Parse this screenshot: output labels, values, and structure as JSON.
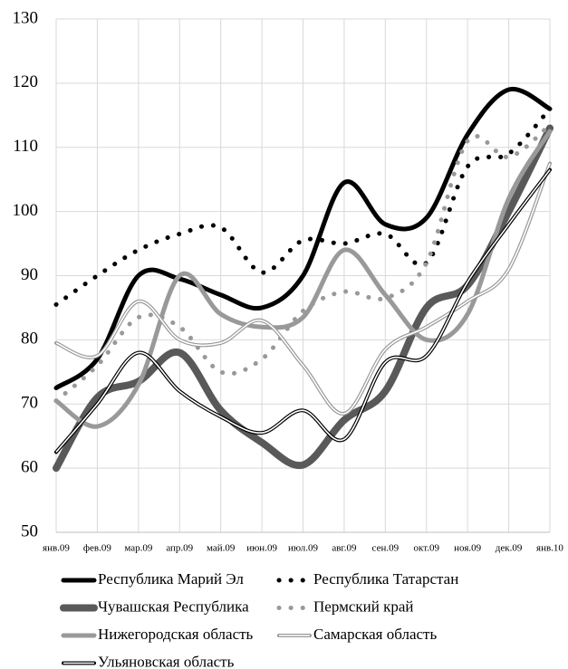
{
  "chart_data": {
    "type": "line",
    "categories": [
      "янв.09",
      "фев.09",
      "мар.09",
      "апр.09",
      "май.09",
      "июн.09",
      "июл.09",
      "авг.09",
      "сен.09",
      "окт.09",
      "ноя.09",
      "дек.09",
      "янв.10"
    ],
    "ylim": [
      50,
      130
    ],
    "yticks": [
      50,
      60,
      70,
      80,
      90,
      100,
      110,
      120,
      130
    ],
    "grid": true,
    "smooth": true,
    "series": [
      {
        "name": "Республика Марий Эл",
        "color": "#000000",
        "line_style": "solid",
        "values": [
          72.5,
          77,
          90,
          89.5,
          87,
          85,
          90,
          104.5,
          98,
          99,
          112,
          119,
          116
        ]
      },
      {
        "name": "Республика Татарстан",
        "color": "#000000",
        "line_style": "dotted",
        "values": [
          85.5,
          90,
          94,
          96.5,
          97.5,
          90.5,
          95.5,
          95,
          96.5,
          92,
          107,
          109,
          116
        ]
      },
      {
        "name": "Чувашская Республика",
        "color": "#595959",
        "line_style": "solid",
        "values": [
          60,
          71,
          73.5,
          78,
          69,
          64,
          60.5,
          67.5,
          72,
          85,
          88.5,
          100,
          113
        ]
      },
      {
        "name": "Пермский край",
        "color": "#999999",
        "line_style": "dotted",
        "values": [
          70.5,
          76,
          83.5,
          82,
          75,
          77,
          84.5,
          87.5,
          86.5,
          92,
          111,
          108.5,
          113.5
        ]
      },
      {
        "name": "Нижегородская область",
        "color": "#999999",
        "line_style": "solid",
        "values": [
          70.5,
          66.5,
          73,
          90,
          84,
          82,
          83.5,
          94,
          87,
          80,
          84,
          102,
          112.5
        ]
      },
      {
        "name": "Самарская область",
        "color": "#999999",
        "line_style": "double",
        "values": [
          79.5,
          77.5,
          86,
          80,
          79.5,
          83,
          76,
          68.5,
          78.5,
          82,
          86,
          91,
          107.5
        ]
      },
      {
        "name": "Ульяновская область",
        "color": "#000000",
        "line_style": "double",
        "values": [
          62.5,
          70,
          78,
          72,
          68,
          65.5,
          69,
          64.5,
          76.5,
          77.5,
          89,
          98,
          106.5
        ]
      }
    ]
  }
}
